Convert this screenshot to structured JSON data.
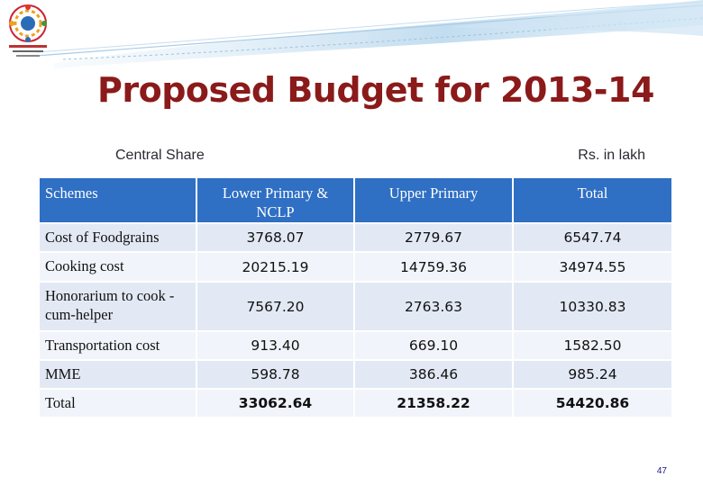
{
  "slide": {
    "title": "Proposed Budget for 2013-14",
    "subtitle_left": "Central Share",
    "subtitle_right": "Rs. in lakh",
    "page_number": "47"
  },
  "logo": {
    "icon": "emblem-logo"
  },
  "colors": {
    "title": "#8b1a1a",
    "header_bg": "#2f6fc4",
    "row_bg": "#e3e9f4",
    "row_alt_bg": "#f1f4fa"
  },
  "table": {
    "headers": [
      "Schemes",
      "Lower Primary & NCLP",
      "Upper Primary",
      "Total"
    ],
    "rows": [
      {
        "scheme": "Cost of Foodgrains",
        "lower": "3768.07",
        "upper": "2779.67",
        "total": "6547.74"
      },
      {
        "scheme": "Cooking cost",
        "lower": "20215.19",
        "upper": "14759.36",
        "total": "34974.55"
      },
      {
        "scheme": "Honorarium to cook -cum-helper",
        "lower": "7567.20",
        "upper": "2763.63",
        "total": "10330.83"
      },
      {
        "scheme": "Transportation cost",
        "lower": "913.40",
        "upper": "669.10",
        "total": "1582.50"
      },
      {
        "scheme": "MME",
        "lower": "598.78",
        "upper": "386.46",
        "total": "985.24"
      },
      {
        "scheme": "Total",
        "lower": "33062.64",
        "upper": "21358.22",
        "total": "54420.86"
      }
    ]
  }
}
